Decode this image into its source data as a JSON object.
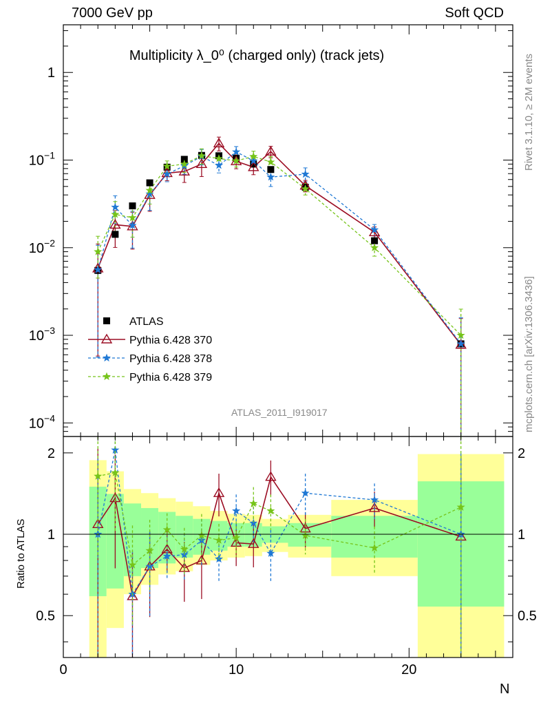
{
  "header": {
    "left": "7000 GeV pp",
    "right": "Soft QCD"
  },
  "side": {
    "rivet": "Rivet 3.1.10, ≥ 2M events",
    "mcplots": "mcplots.cern.ch [arXiv:1306.3436]"
  },
  "chart_data": {
    "type": "line",
    "title": "Multiplicity λ_0⁰ (charged only) (track jets)",
    "analysis_label": "ATLAS_2011_I919017",
    "xlabel": "N",
    "ylabel_ratio": "Ratio to ATLAS",
    "xlim": [
      0,
      26
    ],
    "ylim_main": [
      7e-05,
      3.5
    ],
    "ylog": true,
    "ylim_ratio": [
      0.35,
      2.3
    ],
    "ratio_log": true,
    "x_ticks": [
      "0",
      "10",
      "20"
    ],
    "y_ticks_main": [
      {
        "v": 0.0001,
        "b": "10",
        "e": "−4"
      },
      {
        "v": 0.001,
        "b": "10",
        "e": "−3"
      },
      {
        "v": 0.01,
        "b": "10",
        "e": "−2"
      },
      {
        "v": 0.1,
        "b": "10",
        "e": "−1"
      },
      {
        "v": 1,
        "b": "1",
        "e": ""
      }
    ],
    "y_ticks_ratio": [
      {
        "v": 0.5,
        "label": "0.5"
      },
      {
        "v": 1,
        "label": "1"
      },
      {
        "v": 2,
        "label": "2"
      }
    ],
    "x": [
      2,
      3,
      4,
      5,
      6,
      7,
      8,
      9,
      10,
      11,
      12,
      14,
      18,
      23
    ],
    "data": {
      "name": "ATLAS",
      "color": "#000000",
      "values": [
        0.0055,
        0.0142,
        0.03,
        0.055,
        0.083,
        0.102,
        0.113,
        0.112,
        0.105,
        0.09,
        0.078,
        0.049,
        0.012,
        0.0008
      ],
      "bins": [
        [
          1.5,
          2.5
        ],
        [
          2.5,
          3.5
        ],
        [
          3.5,
          4.5
        ],
        [
          4.5,
          5.5
        ],
        [
          5.5,
          6.5
        ],
        [
          6.5,
          7.5
        ],
        [
          7.5,
          8.5
        ],
        [
          8.5,
          9.5
        ],
        [
          9.5,
          10.5
        ],
        [
          10.5,
          11.5
        ],
        [
          11.5,
          13
        ],
        [
          13,
          15.5
        ],
        [
          15.5,
          20.5
        ],
        [
          20.5,
          25.5
        ]
      ],
      "band_green": [
        [
          0.59,
          1.5
        ],
        [
          0.63,
          1.41
        ],
        [
          0.7,
          1.3
        ],
        [
          0.75,
          1.25
        ],
        [
          0.78,
          1.21
        ],
        [
          0.82,
          1.17
        ],
        [
          0.84,
          1.14
        ],
        [
          0.87,
          1.12
        ],
        [
          0.9,
          1.1
        ],
        [
          0.9,
          1.1
        ],
        [
          0.93,
          1.07
        ],
        [
          0.9,
          1.1
        ],
        [
          0.82,
          1.17
        ],
        [
          0.54,
          1.57
        ]
      ],
      "band_yellow": [
        [
          0.35,
          1.88
        ],
        [
          0.45,
          1.71
        ],
        [
          0.6,
          1.47
        ],
        [
          0.65,
          1.42
        ],
        [
          0.71,
          1.36
        ],
        [
          0.73,
          1.32
        ],
        [
          0.77,
          1.27
        ],
        [
          0.8,
          1.22
        ],
        [
          0.82,
          1.19
        ],
        [
          0.83,
          1.18
        ],
        [
          0.86,
          1.14
        ],
        [
          0.82,
          1.18
        ],
        [
          0.7,
          1.34
        ],
        [
          0.35,
          1.98
        ]
      ]
    },
    "series": [
      {
        "name": "Pythia 6.428 370",
        "color": "#9b0d23",
        "dash": "",
        "marker": "triangle",
        "values": [
          0.0058,
          0.0183,
          0.0175,
          0.04,
          0.071,
          0.074,
          0.09,
          0.155,
          0.097,
          0.083,
          0.125,
          0.051,
          0.015,
          0.00078
        ],
        "err": [
          0.9,
          0.45,
          0.45,
          0.35,
          0.18,
          0.25,
          0.28,
          0.18,
          0.18,
          0.18,
          0.15,
          0.15,
          0.15,
          0.99
        ],
        "ratio": [
          1.09,
          1.36,
          0.59,
          0.76,
          0.88,
          0.75,
          0.8,
          1.42,
          0.93,
          0.92,
          1.63,
          1.05,
          1.25,
          0.98
        ]
      },
      {
        "name": "Pythia 6.428 378",
        "color": "#1f78d4",
        "dash": "4,3",
        "marker": "star",
        "values": [
          0.0056,
          0.029,
          0.018,
          0.041,
          0.069,
          0.086,
          0.11,
          0.087,
          0.124,
          0.098,
          0.064,
          0.069,
          0.016,
          0.0008
        ],
        "err": [
          0.9,
          0.35,
          0.45,
          0.35,
          0.18,
          0.2,
          0.2,
          0.18,
          0.15,
          0.15,
          0.22,
          0.18,
          0.15,
          0.99
        ],
        "ratio": [
          1.0,
          2.05,
          0.6,
          0.76,
          0.83,
          0.84,
          0.95,
          0.81,
          1.22,
          1.1,
          0.85,
          1.42,
          1.34,
          1.0
        ]
      },
      {
        "name": "Pythia 6.428 379",
        "color": "#76c41a",
        "dash": "4,3",
        "marker": "star",
        "values": [
          0.009,
          0.024,
          0.022,
          0.045,
          0.085,
          0.09,
          0.112,
          0.104,
          0.098,
          0.11,
          0.095,
          0.047,
          0.01,
          0.001
        ],
        "err": [
          0.5,
          0.4,
          0.4,
          0.3,
          0.15,
          0.2,
          0.2,
          0.15,
          0.15,
          0.15,
          0.15,
          0.15,
          0.2,
          0.99
        ],
        "ratio": [
          1.64,
          1.69,
          0.77,
          0.87,
          1.04,
          0.88,
          0.99,
          0.95,
          0.97,
          1.3,
          1.22,
          0.99,
          0.89,
          1.26
        ]
      }
    ],
    "legend_position": "lower-left"
  }
}
